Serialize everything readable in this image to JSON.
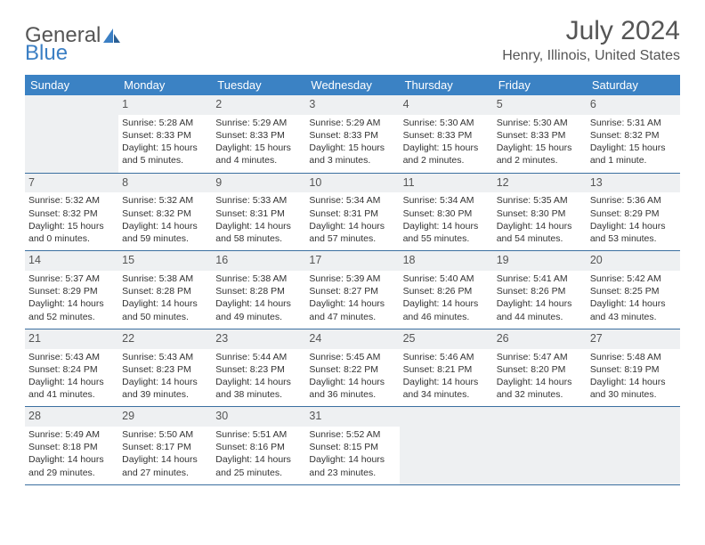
{
  "logo": {
    "part1": "General",
    "part2": "Blue"
  },
  "title": "July 2024",
  "location": "Henry, Illinois, United States",
  "weekdays": [
    "Sunday",
    "Monday",
    "Tuesday",
    "Wednesday",
    "Thursday",
    "Friday",
    "Saturday"
  ],
  "colors": {
    "header_bg": "#3b82c4",
    "row_divider": "#3b6fa0",
    "strip_bg": "#eef0f2",
    "text": "#333333",
    "muted": "#555555"
  },
  "weeks": [
    [
      null,
      {
        "n": "1",
        "sr": "Sunrise: 5:28 AM",
        "ss": "Sunset: 8:33 PM",
        "d1": "Daylight: 15 hours",
        "d2": "and 5 minutes."
      },
      {
        "n": "2",
        "sr": "Sunrise: 5:29 AM",
        "ss": "Sunset: 8:33 PM",
        "d1": "Daylight: 15 hours",
        "d2": "and 4 minutes."
      },
      {
        "n": "3",
        "sr": "Sunrise: 5:29 AM",
        "ss": "Sunset: 8:33 PM",
        "d1": "Daylight: 15 hours",
        "d2": "and 3 minutes."
      },
      {
        "n": "4",
        "sr": "Sunrise: 5:30 AM",
        "ss": "Sunset: 8:33 PM",
        "d1": "Daylight: 15 hours",
        "d2": "and 2 minutes."
      },
      {
        "n": "5",
        "sr": "Sunrise: 5:30 AM",
        "ss": "Sunset: 8:33 PM",
        "d1": "Daylight: 15 hours",
        "d2": "and 2 minutes."
      },
      {
        "n": "6",
        "sr": "Sunrise: 5:31 AM",
        "ss": "Sunset: 8:32 PM",
        "d1": "Daylight: 15 hours",
        "d2": "and 1 minute."
      }
    ],
    [
      {
        "n": "7",
        "sr": "Sunrise: 5:32 AM",
        "ss": "Sunset: 8:32 PM",
        "d1": "Daylight: 15 hours",
        "d2": "and 0 minutes."
      },
      {
        "n": "8",
        "sr": "Sunrise: 5:32 AM",
        "ss": "Sunset: 8:32 PM",
        "d1": "Daylight: 14 hours",
        "d2": "and 59 minutes."
      },
      {
        "n": "9",
        "sr": "Sunrise: 5:33 AM",
        "ss": "Sunset: 8:31 PM",
        "d1": "Daylight: 14 hours",
        "d2": "and 58 minutes."
      },
      {
        "n": "10",
        "sr": "Sunrise: 5:34 AM",
        "ss": "Sunset: 8:31 PM",
        "d1": "Daylight: 14 hours",
        "d2": "and 57 minutes."
      },
      {
        "n": "11",
        "sr": "Sunrise: 5:34 AM",
        "ss": "Sunset: 8:30 PM",
        "d1": "Daylight: 14 hours",
        "d2": "and 55 minutes."
      },
      {
        "n": "12",
        "sr": "Sunrise: 5:35 AM",
        "ss": "Sunset: 8:30 PM",
        "d1": "Daylight: 14 hours",
        "d2": "and 54 minutes."
      },
      {
        "n": "13",
        "sr": "Sunrise: 5:36 AM",
        "ss": "Sunset: 8:29 PM",
        "d1": "Daylight: 14 hours",
        "d2": "and 53 minutes."
      }
    ],
    [
      {
        "n": "14",
        "sr": "Sunrise: 5:37 AM",
        "ss": "Sunset: 8:29 PM",
        "d1": "Daylight: 14 hours",
        "d2": "and 52 minutes."
      },
      {
        "n": "15",
        "sr": "Sunrise: 5:38 AM",
        "ss": "Sunset: 8:28 PM",
        "d1": "Daylight: 14 hours",
        "d2": "and 50 minutes."
      },
      {
        "n": "16",
        "sr": "Sunrise: 5:38 AM",
        "ss": "Sunset: 8:28 PM",
        "d1": "Daylight: 14 hours",
        "d2": "and 49 minutes."
      },
      {
        "n": "17",
        "sr": "Sunrise: 5:39 AM",
        "ss": "Sunset: 8:27 PM",
        "d1": "Daylight: 14 hours",
        "d2": "and 47 minutes."
      },
      {
        "n": "18",
        "sr": "Sunrise: 5:40 AM",
        "ss": "Sunset: 8:26 PM",
        "d1": "Daylight: 14 hours",
        "d2": "and 46 minutes."
      },
      {
        "n": "19",
        "sr": "Sunrise: 5:41 AM",
        "ss": "Sunset: 8:26 PM",
        "d1": "Daylight: 14 hours",
        "d2": "and 44 minutes."
      },
      {
        "n": "20",
        "sr": "Sunrise: 5:42 AM",
        "ss": "Sunset: 8:25 PM",
        "d1": "Daylight: 14 hours",
        "d2": "and 43 minutes."
      }
    ],
    [
      {
        "n": "21",
        "sr": "Sunrise: 5:43 AM",
        "ss": "Sunset: 8:24 PM",
        "d1": "Daylight: 14 hours",
        "d2": "and 41 minutes."
      },
      {
        "n": "22",
        "sr": "Sunrise: 5:43 AM",
        "ss": "Sunset: 8:23 PM",
        "d1": "Daylight: 14 hours",
        "d2": "and 39 minutes."
      },
      {
        "n": "23",
        "sr": "Sunrise: 5:44 AM",
        "ss": "Sunset: 8:23 PM",
        "d1": "Daylight: 14 hours",
        "d2": "and 38 minutes."
      },
      {
        "n": "24",
        "sr": "Sunrise: 5:45 AM",
        "ss": "Sunset: 8:22 PM",
        "d1": "Daylight: 14 hours",
        "d2": "and 36 minutes."
      },
      {
        "n": "25",
        "sr": "Sunrise: 5:46 AM",
        "ss": "Sunset: 8:21 PM",
        "d1": "Daylight: 14 hours",
        "d2": "and 34 minutes."
      },
      {
        "n": "26",
        "sr": "Sunrise: 5:47 AM",
        "ss": "Sunset: 8:20 PM",
        "d1": "Daylight: 14 hours",
        "d2": "and 32 minutes."
      },
      {
        "n": "27",
        "sr": "Sunrise: 5:48 AM",
        "ss": "Sunset: 8:19 PM",
        "d1": "Daylight: 14 hours",
        "d2": "and 30 minutes."
      }
    ],
    [
      {
        "n": "28",
        "sr": "Sunrise: 5:49 AM",
        "ss": "Sunset: 8:18 PM",
        "d1": "Daylight: 14 hours",
        "d2": "and 29 minutes."
      },
      {
        "n": "29",
        "sr": "Sunrise: 5:50 AM",
        "ss": "Sunset: 8:17 PM",
        "d1": "Daylight: 14 hours",
        "d2": "and 27 minutes."
      },
      {
        "n": "30",
        "sr": "Sunrise: 5:51 AM",
        "ss": "Sunset: 8:16 PM",
        "d1": "Daylight: 14 hours",
        "d2": "and 25 minutes."
      },
      {
        "n": "31",
        "sr": "Sunrise: 5:52 AM",
        "ss": "Sunset: 8:15 PM",
        "d1": "Daylight: 14 hours",
        "d2": "and 23 minutes."
      },
      null,
      null,
      null
    ]
  ]
}
